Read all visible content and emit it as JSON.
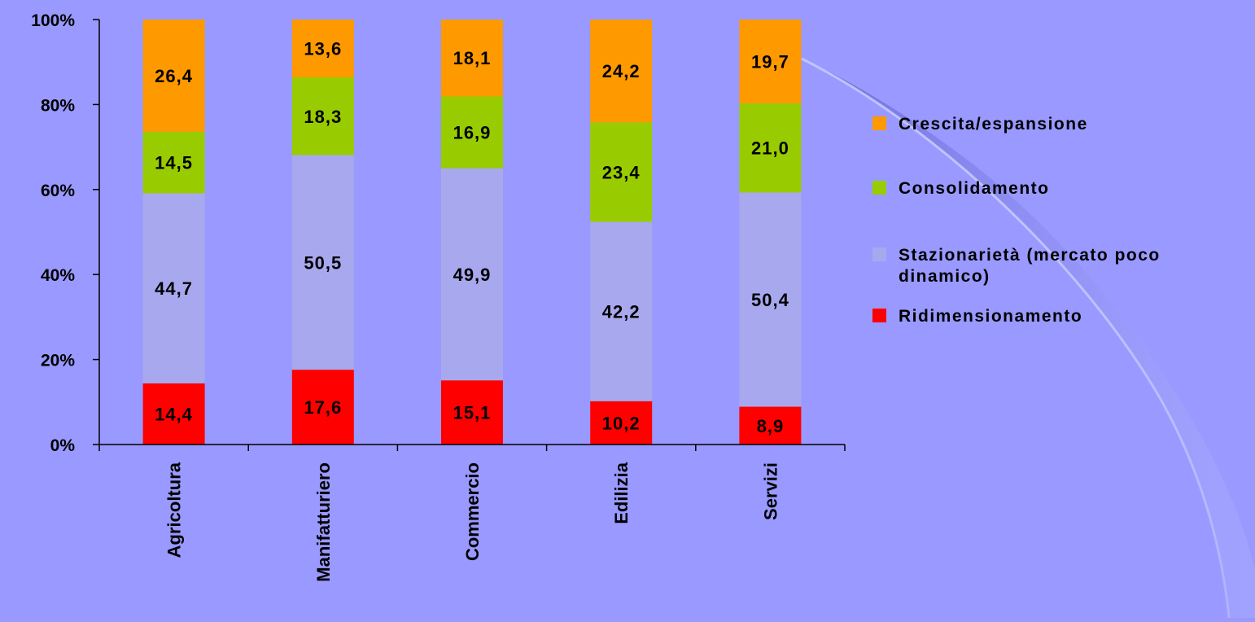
{
  "chart_data": {
    "type": "bar",
    "stacked": true,
    "categories": [
      "Agricoltura",
      "Manifatturiero",
      "Commercio",
      "Edilizia",
      "Servizi"
    ],
    "series": [
      {
        "name": "Ridimensionamento",
        "values": [
          14.4,
          17.6,
          15.1,
          10.2,
          8.9
        ],
        "labels": [
          "14,4",
          "17,6",
          "15,1",
          "10,2",
          "8,9"
        ],
        "color": "#ff0000"
      },
      {
        "name": "Stazionarietà (mercato poco dinamico)",
        "values": [
          44.7,
          50.5,
          49.9,
          42.2,
          50.4
        ],
        "labels": [
          "44,7",
          "50,5",
          "49,9",
          "42,2",
          "50,4"
        ],
        "color": "#a8a8ee"
      },
      {
        "name": "Consolidamento",
        "values": [
          14.5,
          18.3,
          16.9,
          23.4,
          21.0
        ],
        "labels": [
          "14,5",
          "18,3",
          "16,9",
          "23,4",
          "21,0"
        ],
        "color": "#99cc00"
      },
      {
        "name": "Crescita/espansione",
        "values": [
          26.4,
          13.6,
          18.1,
          24.2,
          19.7
        ],
        "labels": [
          "26,4",
          "13,6",
          "18,1",
          "24,2",
          "19,7"
        ],
        "color": "#ff9900"
      }
    ],
    "yticks": [
      "0%",
      "20%",
      "40%",
      "60%",
      "80%",
      "100%"
    ],
    "ylim": [
      0,
      100
    ],
    "legend": {
      "placement": "right",
      "order": [
        3,
        2,
        1,
        0
      ],
      "entries": [
        {
          "lines": [
            "Crescita/espansione"
          ]
        },
        {
          "lines": [
            "Consolidamento"
          ]
        },
        {
          "lines": [
            "Stazionarietà (mercato poco",
            "dinamico)"
          ]
        },
        {
          "lines": [
            "Ridimensionamento"
          ]
        }
      ]
    },
    "grid": false
  },
  "colors": {
    "background": "#9999ff",
    "axis": "#000000"
  }
}
